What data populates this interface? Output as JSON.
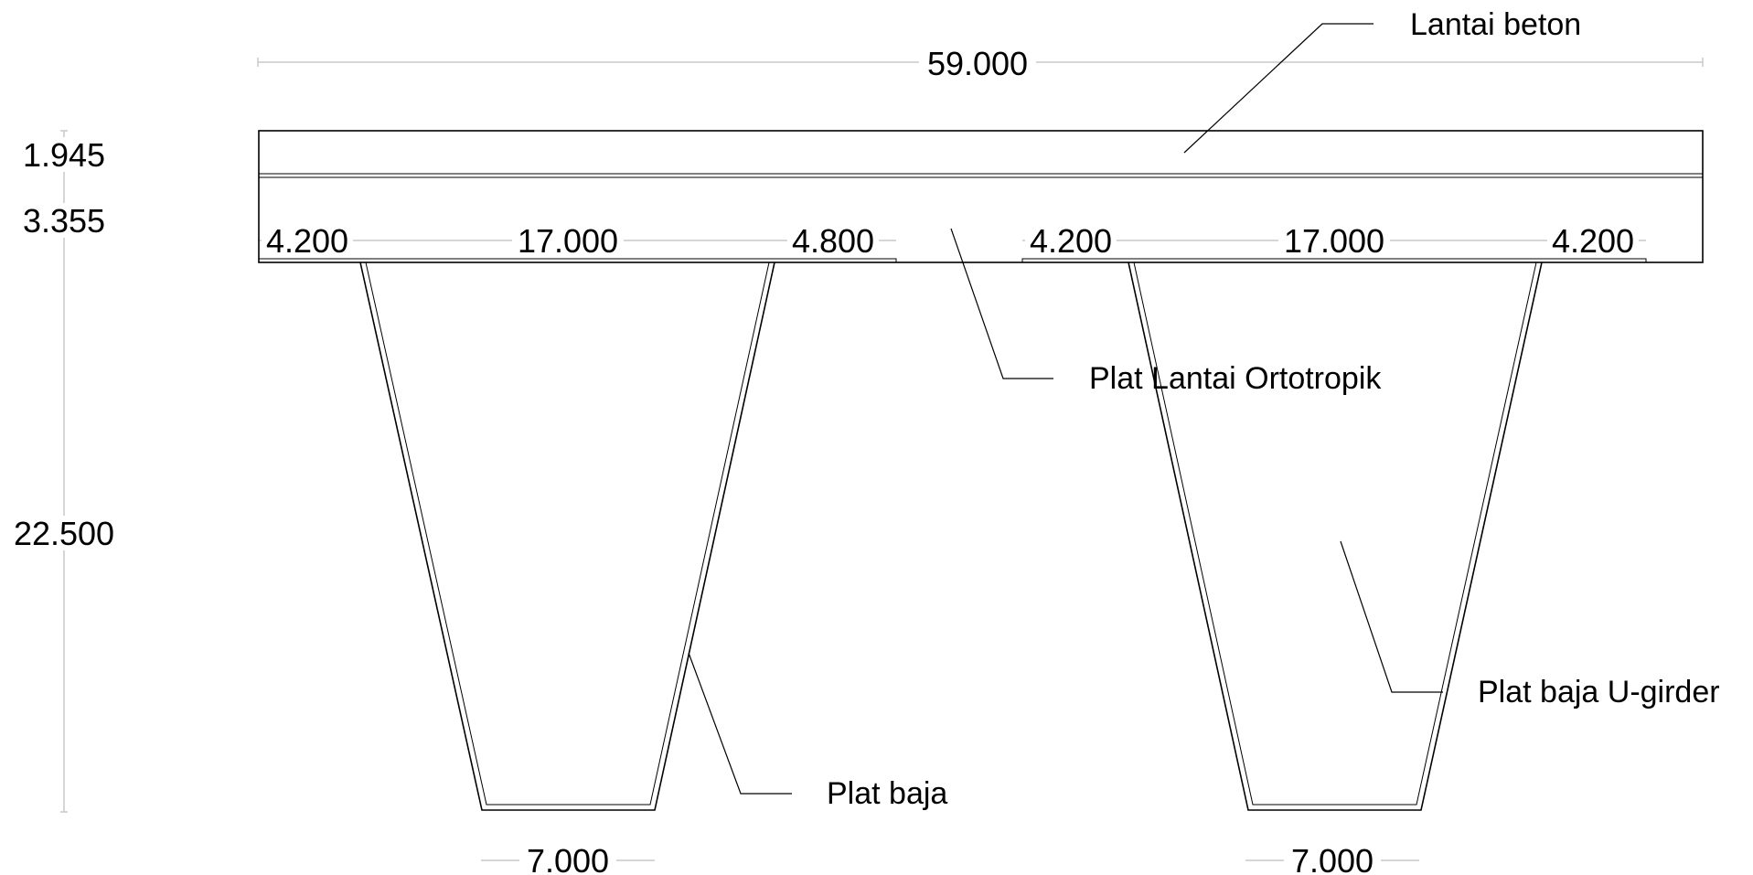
{
  "dimensions": {
    "overall_width": "59.000",
    "deck_thickness": "1.945",
    "ortho_plate_thickness": "3.355",
    "girder_height": "22.500",
    "left_girder": {
      "outer_flange": "4.200",
      "top_width": "17.000",
      "inner_flange": "4.800",
      "bottom_width": "7.000"
    },
    "right_girder": {
      "inner_flange": "4.200",
      "top_width": "17.000",
      "outer_flange": "4.200",
      "bottom_width": "7.000"
    }
  },
  "labels": {
    "concrete_deck": "Lantai beton",
    "orthotropic_plate": "Plat Lantai Ortotropik",
    "steel_plate": "Plat baja",
    "u_girder_plate": "Plat baja U-girder"
  },
  "colors": {
    "structure": "#000000",
    "dimension_lines": "#c9c9c9",
    "background": "#ffffff"
  }
}
